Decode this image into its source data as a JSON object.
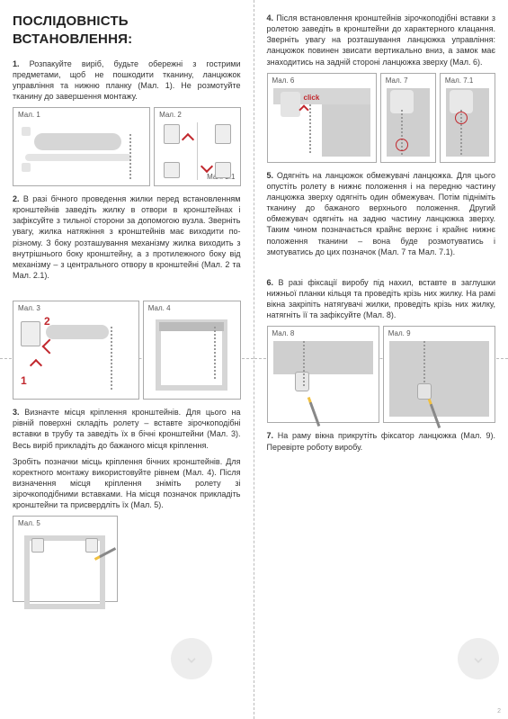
{
  "title": "Послідовність встановлення:",
  "left": {
    "step1": "<b>1.</b> Розпакуйте виріб, будьте обережні з гострими предметами, щоб не пошкодити тканину, ланцюжок управління та нижню планку (Мал. 1). Не розмотуйте тканину до завершення монтажу.",
    "step2": "<b>2.</b> В разі бічного проведення жилки перед встановленням кронштейнів заведіть жилку в отвори в кронштейнах і зафіксуйте з тильної сторони за допомогою вузла. Зверніть увагу, жилка натяжіння з кронштейнів має виходити по-різному. З боку розташування механізму жилка виходить з внутрішнього боку кронштейну, а з протилежного боку від механізму – з центрального отвору в кронштейні (Мал. 2 та Мал. 2.1).",
    "step3a": "<b>3.</b> Визначте місця кріплення кронштейнів. Для цього на рівній поверхні складіть ролету – вставте зірочкоподібні вставки в трубу та заведіть їх в бічні кронштейни (Мал. 3). Весь виріб прикладіть до бажаного місця кріплення.",
    "step3b": "Зробіть позначки місць кріплення бічних кронштейнів. Для коректного монтажу використовуйте рівнем (Мал. 4). Після визначення місця кріплення зніміть ролету зі зірочкоподібними вставками. На місця позначок прикладіть кронштейни та присвердліть їх (Мал. 5).",
    "fig1": "Мал. 1",
    "fig2": "Мал. 2",
    "fig21": "Мал. 2.1",
    "fig3": "Мал. 3",
    "fig4": "Мал. 4",
    "fig5": "Мал. 5",
    "num1": "1",
    "num2": "2"
  },
  "right": {
    "step4": "<b>4.</b> Після встановлення кронштейнів зірочкоподібні вставки з ролетою заведіть в кронштейни до характерного клацання. Зверніть увагу на розташування ланцюжка управління: ланцюжок повинен звисати вертикально вниз, а замок має знаходитись на задній стороні ланцюжка зверху (Мал. 6).",
    "step5": "<b>5.</b> Одягніть на ланцюжок обмежувачі ланцюжка. Для цього опустіть ролету в нижнє положення і на передню частину ланцюжка зверху одягніть один обмежувач. Потім підніміть тканину до бажаного верхнього положення. Другий обмежувач одягніть на задню частину ланцюжка зверху. Таким чином позначається крайнє верхнє і крайнє нижнє положення тканини – вона буде розмотуватись і змотуватись до цих позначок (Мал. 7 та Мал. 7.1).",
    "step6": "<b>6.</b> В разі фіксації виробу під нахил, вставте в заглушки нижньої планки кільця та проведіть крізь них жилку. На рамі вікна закріпіть натягувачі жилки, проведіть крізь них жилку, натягніть її та зафіксуйте (Мал. 8).",
    "step7": "<b>7.</b> На раму вікна прикрутіть фіксатор ланцюжка (Мал. 9). Перевірте роботу виробу.",
    "fig6": "Мал. 6",
    "fig7": "Мал. 7",
    "fig71": "Мал. 7.1",
    "fig8": "Мал. 8",
    "fig9": "Мал. 9",
    "click": "click"
  },
  "pagenum": "2",
  "colors": {
    "accent": "#c1272d",
    "shade": "#d6d6d6",
    "border": "#aaaaaa",
    "text": "#333333"
  }
}
